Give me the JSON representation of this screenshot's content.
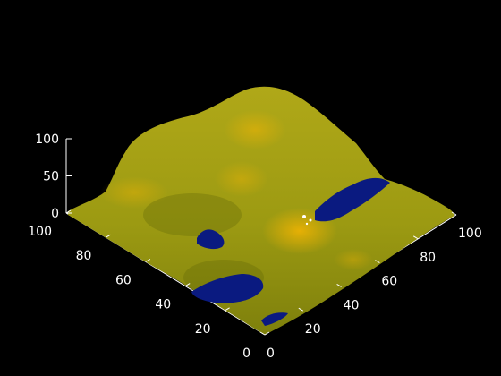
{
  "chart_data": {
    "type": "surface",
    "title": "",
    "xlabel": "",
    "ylabel": "",
    "zlabel": "",
    "xlim": [
      0,
      100
    ],
    "ylim": [
      0,
      100
    ],
    "zlim": [
      0,
      100
    ],
    "x_ticks": [
      "0",
      "20",
      "40",
      "60",
      "80",
      "100"
    ],
    "y_ticks": [
      "0",
      "20",
      "40",
      "60",
      "80",
      "100"
    ],
    "z_ticks": [
      "0",
      "50",
      "100"
    ],
    "background": "#000000",
    "colors": {
      "surface_low": "#8a8a10",
      "surface_high": "#f0a800",
      "highlight": "#ffd000",
      "water": "#0a1a80",
      "axis": "#ffffff"
    },
    "water_regions": [
      {
        "x": 72,
        "y": 60,
        "label": ""
      },
      {
        "x": 40,
        "y": 78,
        "label": ""
      },
      {
        "x": 30,
        "y": 45,
        "label": ""
      },
      {
        "x": 10,
        "y": 30,
        "label": ""
      }
    ],
    "peaks": [
      {
        "x": 20,
        "y": 80,
        "z": 95
      },
      {
        "x": 35,
        "y": 60,
        "z": 78
      },
      {
        "x": 75,
        "y": 80,
        "z": 82
      },
      {
        "x": 62,
        "y": 40,
        "z": 70
      }
    ]
  }
}
